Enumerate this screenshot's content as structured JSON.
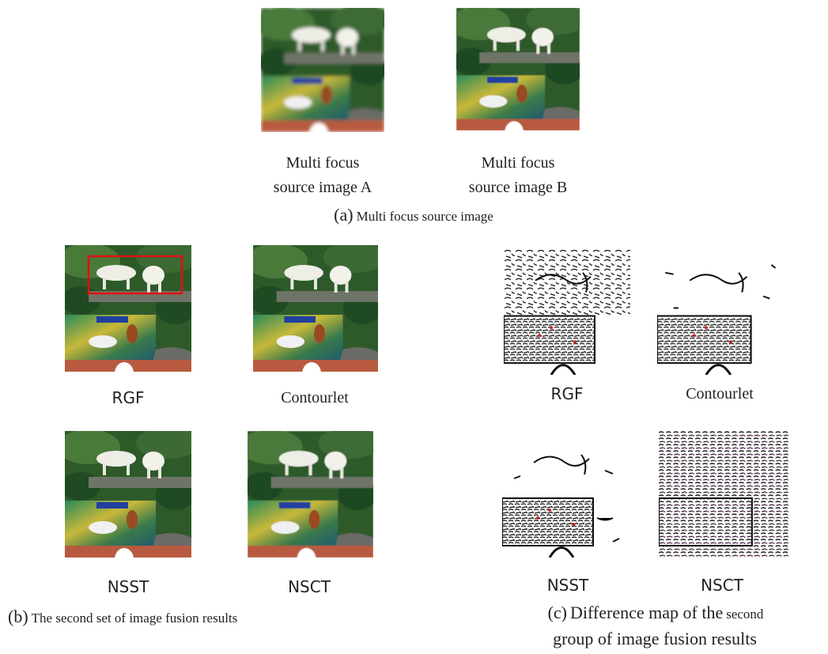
{
  "panel_a": {
    "images": [
      {
        "caption_lines": [
          "Multi focus",
          "source image A"
        ]
      },
      {
        "caption_lines": [
          "Multi focus",
          "source image B"
        ]
      }
    ],
    "caption": {
      "label": "(a)",
      "text": "Multi focus source image"
    }
  },
  "panel_b": {
    "images": [
      {
        "label": "RGF"
      },
      {
        "label": "Contourlet"
      },
      {
        "label": "NSST"
      },
      {
        "label": "NSCT"
      }
    ],
    "caption": {
      "label": "(b)",
      "text": "The second set of image fusion results"
    }
  },
  "panel_c": {
    "images": [
      {
        "label": "RGF"
      },
      {
        "label": "Contourlet"
      },
      {
        "label": "NSST"
      },
      {
        "label": "NSCT"
      }
    ],
    "caption": {
      "label": "(c)",
      "text_start": "Difference map of the",
      "text_small": "second",
      "text_end": "group of image fusion results"
    }
  }
}
